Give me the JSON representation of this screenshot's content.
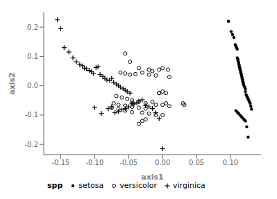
{
  "chart_data": {
    "type": "scatter",
    "x_label": "axis1",
    "y_label": "axis2",
    "legend_title": "spp",
    "legend": "lower left",
    "grid": false,
    "xlim": [
      -0.175,
      0.145
    ],
    "ylim": [
      -0.235,
      0.25
    ],
    "xticks": [
      -0.15,
      {
        "value": -0.1,
        "label": "-0.10"
      },
      -0.05,
      {
        "value": 0.0,
        "label": "0.00"
      },
      0.05,
      {
        "value": 0.1,
        "label": "0.10"
      }
    ],
    "yticks": [
      -0.2,
      -0.1,
      {
        "value": 0.0,
        "label": "0.0"
      },
      0.1,
      0.2
    ],
    "series": [
      {
        "name": "setosa",
        "color": "#000000",
        "marker": "circle",
        "x": [
          0.097,
          0.101,
          0.103,
          0.105,
          0.107,
          0.108,
          0.109,
          0.11,
          0.11,
          0.111,
          0.111,
          0.112,
          0.112,
          0.113,
          0.113,
          0.114,
          0.114,
          0.115,
          0.115,
          0.116,
          0.116,
          0.117,
          0.117,
          0.118,
          0.118,
          0.119,
          0.119,
          0.12,
          0.121,
          0.122,
          0.122,
          0.123,
          0.124,
          0.125,
          0.126,
          0.127,
          0.128,
          0.129,
          0.13,
          0.131,
          0.108,
          0.11,
          0.112,
          0.114,
          0.116,
          0.118,
          0.12,
          0.122,
          0.124,
          0.126
        ],
        "values": [
          0.22,
          0.185,
          0.175,
          0.165,
          0.14,
          0.135,
          0.13,
          0.125,
          0.095,
          0.09,
          0.085,
          0.08,
          0.075,
          0.07,
          0.065,
          0.06,
          0.055,
          0.05,
          0.045,
          0.04,
          0.035,
          0.03,
          0.025,
          0.02,
          0.015,
          0.01,
          0.005,
          0.0,
          -0.005,
          -0.01,
          -0.02,
          -0.03,
          -0.035,
          -0.04,
          -0.045,
          -0.05,
          -0.055,
          -0.06,
          -0.07,
          -0.08,
          -0.085,
          -0.09,
          -0.095,
          -0.1,
          -0.105,
          -0.11,
          -0.115,
          -0.12,
          -0.14,
          -0.175
        ]
      },
      {
        "name": "versicolor",
        "color": "#000000",
        "marker": "open_circle",
        "x": [
          -0.055,
          -0.048,
          -0.035,
          -0.02,
          -0.015,
          -0.005,
          0.0,
          0.008,
          0.01,
          -0.062,
          -0.055,
          -0.048,
          -0.04,
          -0.03,
          -0.02,
          -0.01,
          -0.005,
          0.0,
          -0.068,
          -0.06,
          -0.052,
          -0.045,
          -0.035,
          -0.025,
          -0.015,
          -0.005,
          0.005,
          -0.072,
          -0.065,
          -0.055,
          -0.045,
          -0.035,
          -0.025,
          -0.01,
          0.0,
          0.005,
          -0.075,
          -0.065,
          -0.055,
          -0.045,
          -0.03,
          -0.02,
          -0.01,
          0.0,
          0.01,
          0.03,
          0.032,
          -0.025,
          -0.03,
          -0.035
        ],
        "values": [
          0.11,
          0.082,
          0.06,
          0.055,
          0.05,
          0.055,
          0.06,
          0.055,
          0.03,
          0.045,
          0.042,
          0.038,
          0.04,
          0.045,
          0.038,
          0.035,
          -0.025,
          -0.02,
          -0.035,
          -0.04,
          -0.045,
          -0.05,
          -0.055,
          -0.06,
          -0.055,
          -0.025,
          -0.025,
          -0.06,
          -0.065,
          -0.068,
          -0.072,
          -0.075,
          -0.078,
          -0.065,
          -0.065,
          -0.06,
          -0.075,
          -0.08,
          -0.085,
          -0.09,
          -0.092,
          -0.095,
          -0.1,
          -0.1,
          -0.07,
          -0.06,
          -0.065,
          -0.115,
          -0.12,
          -0.13
        ]
      },
      {
        "name": "virginica",
        "color": "#000000",
        "marker": "plus",
        "x": [
          -0.155,
          -0.15,
          -0.145,
          -0.138,
          -0.132,
          -0.127,
          -0.122,
          -0.118,
          -0.115,
          -0.112,
          -0.108,
          -0.105,
          -0.102,
          -0.098,
          -0.095,
          -0.092,
          -0.088,
          -0.085,
          -0.082,
          -0.078,
          -0.075,
          -0.072,
          -0.068,
          -0.065,
          -0.062,
          -0.058,
          -0.055,
          -0.052,
          -0.048,
          -0.045,
          -0.042,
          -0.038,
          -0.035,
          -0.03,
          -0.025,
          -0.02,
          -0.015,
          -0.01,
          -0.005,
          0.0,
          -0.05,
          -0.055,
          -0.06,
          -0.065,
          -0.07,
          -0.075,
          -0.08,
          -0.09,
          -0.1,
          -0.045
        ],
        "values": [
          0.225,
          0.195,
          0.13,
          0.115,
          0.095,
          0.082,
          0.072,
          0.068,
          0.06,
          0.058,
          0.052,
          0.048,
          0.042,
          0.062,
          0.065,
          0.038,
          0.032,
          0.025,
          0.02,
          0.018,
          0.025,
          0.012,
          0.006,
          0.0,
          -0.005,
          -0.01,
          -0.015,
          -0.02,
          -0.025,
          -0.058,
          -0.062,
          -0.058,
          -0.052,
          -0.048,
          -0.068,
          -0.072,
          -0.078,
          -0.092,
          -0.112,
          -0.215,
          -0.072,
          -0.078,
          -0.082,
          -0.088,
          -0.092,
          -0.072,
          -0.078,
          -0.095,
          -0.075,
          -0.062
        ]
      }
    ]
  }
}
